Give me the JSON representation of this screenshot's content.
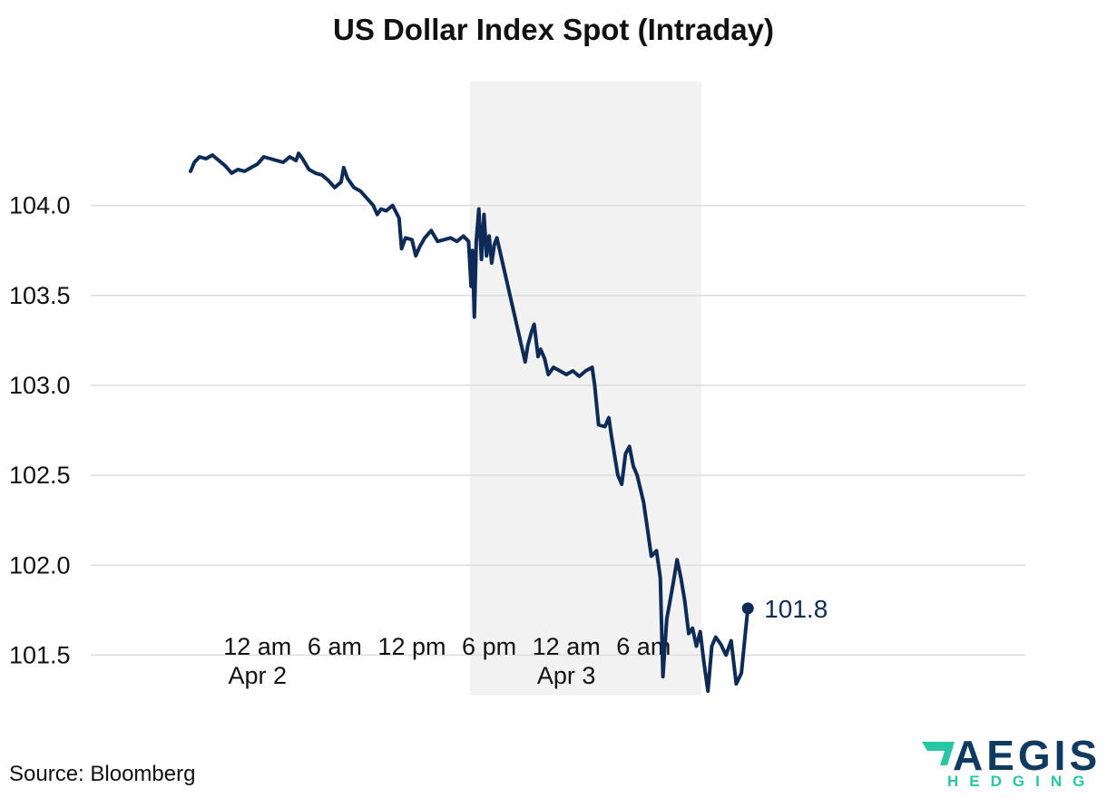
{
  "chart_data": {
    "type": "line",
    "title": "US Dollar Index Spot (Intraday)",
    "source": "Source: Bloomberg",
    "ylim": [
      101.25,
      104.85
    ],
    "yticks": [
      "104.0",
      "103.5",
      "103.0",
      "102.5",
      "102.0",
      "101.5"
    ],
    "xlim_hours": [
      -20,
      66
    ],
    "xticks": [
      {
        "h": 0,
        "label": "12 am",
        "sublabel": "Apr 2"
      },
      {
        "h": 6,
        "label": "6 am",
        "sublabel": ""
      },
      {
        "h": 12,
        "label": "12 pm",
        "sublabel": ""
      },
      {
        "h": 18,
        "label": "6 pm",
        "sublabel": ""
      },
      {
        "h": 24,
        "label": "12 am",
        "sublabel": "Apr 3"
      },
      {
        "h": 30,
        "label": "6 am",
        "sublabel": ""
      }
    ],
    "shaded_region_hours": [
      16.5,
      34.5
    ],
    "grid": true,
    "series": [
      {
        "points": [
          [
            -5.2,
            104.19
          ],
          [
            -4.9,
            104.24
          ],
          [
            -4.5,
            104.27
          ],
          [
            -4.0,
            104.26
          ],
          [
            -3.5,
            104.28
          ],
          [
            -3.0,
            104.25
          ],
          [
            -2.5,
            104.22
          ],
          [
            -2.0,
            104.18
          ],
          [
            -1.5,
            104.2
          ],
          [
            -1.0,
            104.19
          ],
          [
            -0.5,
            104.21
          ],
          [
            0.0,
            104.23
          ],
          [
            0.5,
            104.27
          ],
          [
            1.0,
            104.26
          ],
          [
            1.5,
            104.25
          ],
          [
            2.0,
            104.24
          ],
          [
            2.5,
            104.27
          ],
          [
            3.0,
            104.25
          ],
          [
            3.2,
            104.29
          ],
          [
            3.5,
            104.26
          ],
          [
            4.0,
            104.2
          ],
          [
            4.5,
            104.18
          ],
          [
            5.0,
            104.17
          ],
          [
            5.5,
            104.14
          ],
          [
            6.0,
            104.1
          ],
          [
            6.5,
            104.13
          ],
          [
            6.7,
            104.21
          ],
          [
            7.0,
            104.15
          ],
          [
            7.5,
            104.1
          ],
          [
            8.0,
            104.08
          ],
          [
            8.5,
            104.04
          ],
          [
            9.0,
            104.0
          ],
          [
            9.3,
            103.95
          ],
          [
            9.6,
            103.98
          ],
          [
            10.0,
            103.97
          ],
          [
            10.5,
            104.0
          ],
          [
            11.0,
            103.93
          ],
          [
            11.2,
            103.76
          ],
          [
            11.5,
            103.82
          ],
          [
            12.0,
            103.81
          ],
          [
            12.3,
            103.72
          ],
          [
            12.6,
            103.77
          ],
          [
            13.0,
            103.82
          ],
          [
            13.5,
            103.86
          ],
          [
            14.0,
            103.8
          ],
          [
            14.5,
            103.81
          ],
          [
            15.0,
            103.82
          ],
          [
            15.5,
            103.8
          ],
          [
            16.0,
            103.83
          ],
          [
            16.4,
            103.8
          ],
          [
            16.6,
            103.55
          ],
          [
            16.7,
            103.75
          ],
          [
            16.85,
            103.38
          ],
          [
            17.0,
            103.8
          ],
          [
            17.2,
            103.98
          ],
          [
            17.4,
            103.7
          ],
          [
            17.6,
            103.95
          ],
          [
            17.8,
            103.72
          ],
          [
            18.0,
            103.83
          ],
          [
            18.2,
            103.68
          ],
          [
            18.4,
            103.78
          ],
          [
            18.6,
            103.82
          ],
          [
            20.8,
            103.13
          ],
          [
            21.0,
            103.22
          ],
          [
            21.3,
            103.3
          ],
          [
            21.5,
            103.34
          ],
          [
            21.8,
            103.16
          ],
          [
            22.0,
            103.2
          ],
          [
            22.3,
            103.15
          ],
          [
            22.6,
            103.06
          ],
          [
            23.0,
            103.1
          ],
          [
            23.5,
            103.08
          ],
          [
            24.0,
            103.06
          ],
          [
            24.5,
            103.08
          ],
          [
            25.0,
            103.05
          ],
          [
            25.5,
            103.08
          ],
          [
            26.0,
            103.1
          ],
          [
            26.2,
            103.0
          ],
          [
            26.5,
            102.78
          ],
          [
            27.0,
            102.77
          ],
          [
            27.3,
            102.82
          ],
          [
            27.5,
            102.72
          ],
          [
            28.0,
            102.5
          ],
          [
            28.3,
            102.45
          ],
          [
            28.6,
            102.62
          ],
          [
            28.9,
            102.66
          ],
          [
            29.2,
            102.55
          ],
          [
            29.5,
            102.5
          ],
          [
            30.0,
            102.35
          ],
          [
            30.3,
            102.2
          ],
          [
            30.6,
            102.05
          ],
          [
            31.0,
            102.08
          ],
          [
            31.3,
            101.93
          ],
          [
            31.5,
            101.38
          ],
          [
            31.8,
            101.7
          ],
          [
            32.0,
            101.78
          ],
          [
            32.3,
            101.9
          ],
          [
            32.6,
            102.03
          ],
          [
            32.9,
            101.93
          ],
          [
            33.2,
            101.8
          ],
          [
            33.5,
            101.62
          ],
          [
            33.8,
            101.65
          ],
          [
            34.1,
            101.55
          ],
          [
            34.4,
            101.63
          ],
          [
            34.7,
            101.45
          ],
          [
            35.0,
            101.3
          ],
          [
            35.3,
            101.55
          ],
          [
            35.6,
            101.6
          ],
          [
            36.0,
            101.56
          ],
          [
            36.4,
            101.5
          ],
          [
            36.8,
            101.58
          ],
          [
            37.2,
            101.34
          ],
          [
            37.6,
            101.4
          ],
          [
            37.9,
            101.62
          ],
          [
            38.1,
            101.76
          ]
        ]
      }
    ],
    "last_value": "101.8",
    "colors": {
      "line": "#0d2b56",
      "shade": "#f2f2f2",
      "grid": "#dcdcdc"
    }
  },
  "logo": {
    "main": "AEGIS",
    "sub": "HEDGING",
    "colors": {
      "dark": "#0f3b60",
      "accent": "#27c7a4"
    }
  }
}
